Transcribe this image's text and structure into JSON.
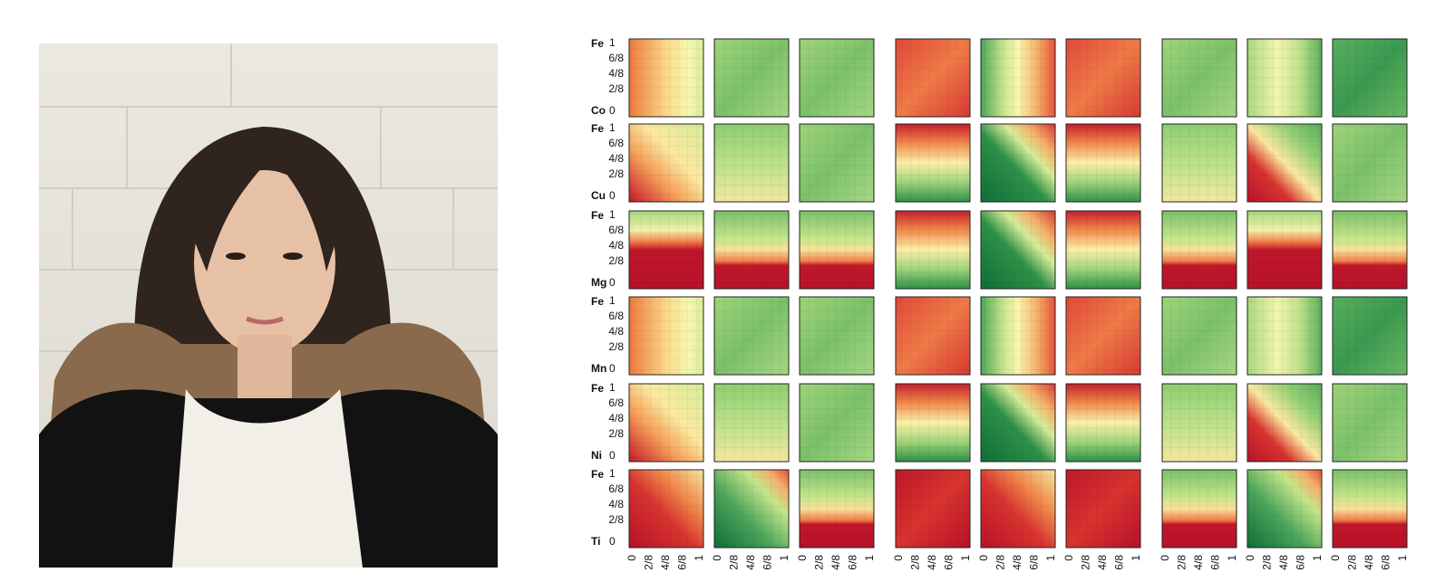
{
  "rows": [
    {
      "element_top": "Fe",
      "element_bottom": "Co",
      "y_ticks": [
        "1",
        "6/8",
        "4/8",
        "2/8",
        "0"
      ]
    },
    {
      "element_top": "Fe",
      "element_bottom": "Cu",
      "y_ticks": [
        "1",
        "6/8",
        "4/8",
        "2/8",
        "0"
      ]
    },
    {
      "element_top": "Fe",
      "element_bottom": "Mg",
      "y_ticks": [
        "1",
        "6/8",
        "4/8",
        "2/8",
        "0"
      ]
    },
    {
      "element_top": "Fe",
      "element_bottom": "Mn",
      "y_ticks": [
        "1",
        "6/8",
        "4/8",
        "2/8",
        "0"
      ]
    },
    {
      "element_top": "Fe",
      "element_bottom": "Ni",
      "y_ticks": [
        "1",
        "6/8",
        "4/8",
        "2/8",
        "0"
      ]
    },
    {
      "element_top": "Fe",
      "element_bottom": "Ti",
      "y_ticks": [
        "1",
        "6/8",
        "4/8",
        "2/8",
        "0"
      ]
    }
  ],
  "x_ticks": [
    "0",
    "2/8",
    "4/8",
    "6/8",
    "1"
  ]
}
